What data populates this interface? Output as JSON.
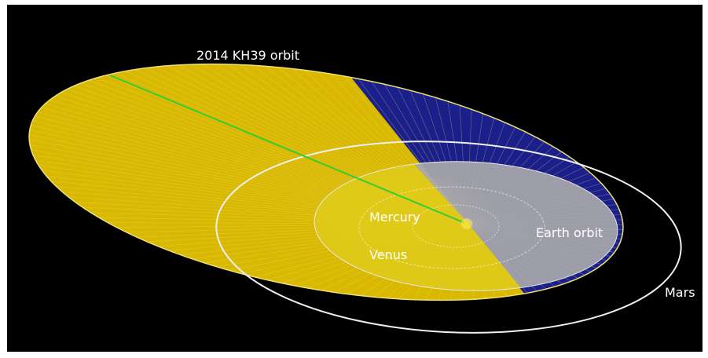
{
  "labels": {
    "asteroid_orbit": "2014 KH39 orbit",
    "mercury": "Mercury",
    "venus": "Venus",
    "earth_orbit": "Earth orbit",
    "mars": "Mars"
  },
  "colors": {
    "background": "#000000",
    "asteroid_orbit_fill": "#d8b800",
    "asteroid_orbit_below": "#1a1f8a",
    "earth_orbit_fill": "#a8a8ac",
    "sun": "#f5e020",
    "line_of_nodes": "#33cc33",
    "planet_orbit_lines": "#ffffff"
  }
}
